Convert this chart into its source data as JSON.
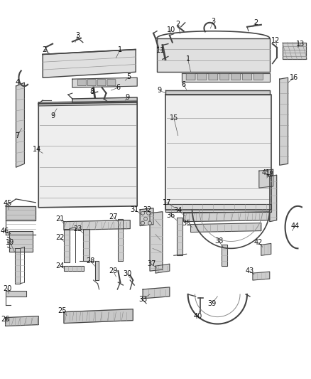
{
  "bg_color": "#ffffff",
  "fig_width": 4.38,
  "fig_height": 5.33,
  "dpi": 100,
  "line_color": "#444444",
  "fill_light": "#e8e8e8",
  "fill_medium": "#d0d0d0",
  "fill_dark": "#aaaaaa",
  "label_fontsize": 7.0,
  "label_color": "#111111",
  "leader_color": "#555555",
  "leader_lw": 0.5
}
